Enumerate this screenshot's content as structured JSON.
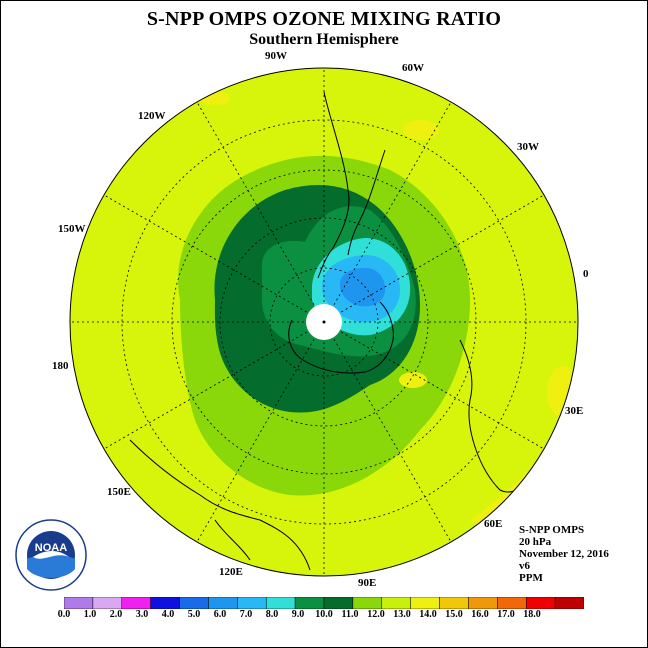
{
  "title": "S-NPP OMPS OZONE MIXING RATIO",
  "subtitle": "Southern Hemisphere",
  "longitude_labels": [
    "90W",
    "60W",
    "30W",
    "0",
    "30E",
    "60E",
    "90E",
    "120E",
    "150E",
    "180",
    "150W",
    "120W"
  ],
  "info": {
    "instrument": "S-NPP OMPS",
    "level": "20 hPa",
    "date": "November 12, 2016",
    "version": "v6",
    "units": "PPM"
  },
  "logo": {
    "text": "NOAA",
    "ring_text": "NATIONAL OCEANIC AND ATMOSPHERIC ADMINISTRATION",
    "ring_text_bottom": "U.S. DEPARTMENT OF COMMERCE"
  },
  "colorbar": {
    "ticks": [
      "0.0",
      "1.0",
      "2.0",
      "3.0",
      "4.0",
      "5.0",
      "6.0",
      "7.0",
      "8.0",
      "9.0",
      "10.0",
      "11.0",
      "12.0",
      "13.0",
      "14.0",
      "15.0",
      "16.0",
      "17.0",
      "18.0"
    ],
    "colors": [
      "#b07ae8",
      "#d9a8f0",
      "#f020f0",
      "#1010e0",
      "#1a6be8",
      "#1e96f0",
      "#28b8f5",
      "#30e0d8",
      "#0a9040",
      "#046c2c",
      "#8ad70a",
      "#c7f00a",
      "#f0f010",
      "#f0c808",
      "#f09808",
      "#f06808",
      "#f00000",
      "#c00000",
      "#7a4a2a"
    ]
  },
  "colors": {
    "field_background": "#d6f50a",
    "contour_10_11": "#8ad70a",
    "contour_9_10": "#046c2c",
    "contour_8_9": "#0a9040",
    "contour_7_8": "#30e0d8",
    "contour_6_7": "#28b8f5",
    "contour_5_6": "#1e96f0",
    "contour_12_13": "#f0f010",
    "contour_13_14": "#f0c808"
  }
}
